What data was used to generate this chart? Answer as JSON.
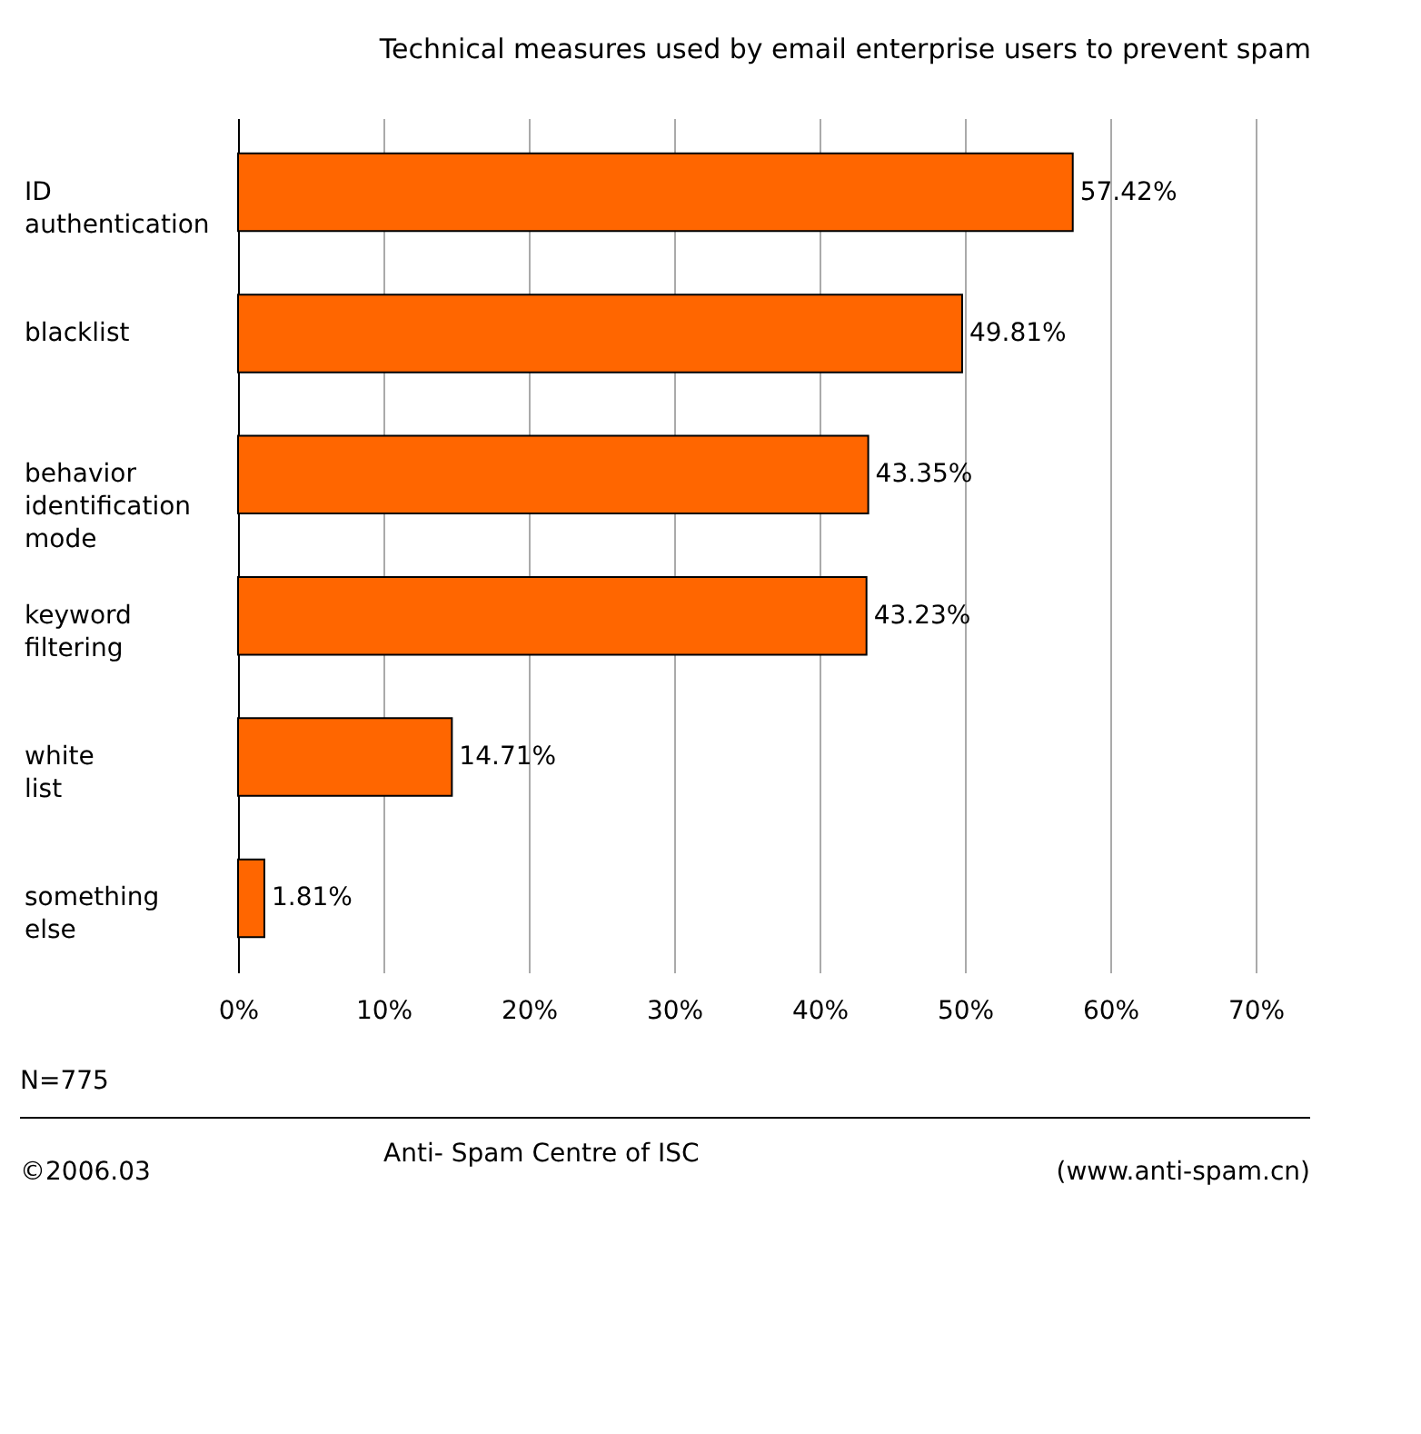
{
  "chart_data": {
    "type": "bar",
    "orientation": "horizontal",
    "title": "Technical measures used by email enterprise users to prevent spam",
    "categories": [
      "ID authentication",
      "blacklist",
      "behavior identification mode",
      "keyword filtering",
      "white list",
      "something else"
    ],
    "values": [
      57.42,
      49.81,
      43.35,
      43.23,
      14.71,
      1.81
    ],
    "value_labels": [
      "57.42%",
      "49.81%",
      "43.35%",
      "43.23%",
      "14.71%",
      "1.81%"
    ],
    "color": "#ff6600",
    "xlim": [
      0,
      70
    ],
    "xticks": [
      {
        "value": 0,
        "label": "0%"
      },
      {
        "value": 10,
        "label": "10%"
      },
      {
        "value": 20,
        "label": "20%"
      },
      {
        "value": 30,
        "label": "30%"
      },
      {
        "value": 40,
        "label": "40%"
      },
      {
        "value": 50,
        "label": "50%"
      },
      {
        "value": 60,
        "label": "60%"
      },
      {
        "value": 70,
        "label": "70%"
      }
    ],
    "grid": "x",
    "annotations": [
      "N=775",
      "©2006.03",
      "Anti- Spam Centre of ISC",
      "(www.anti-spam.cn)"
    ]
  }
}
